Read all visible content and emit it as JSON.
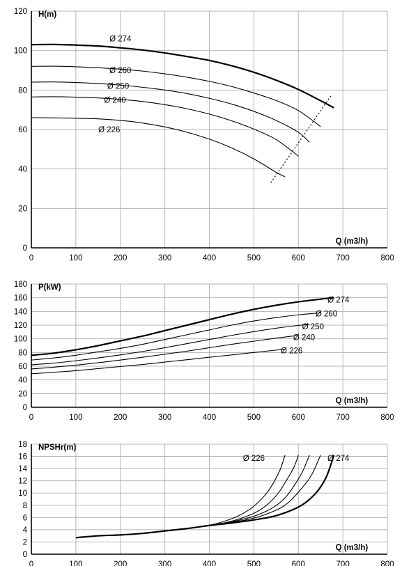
{
  "chart_data": [
    {
      "type": "line",
      "ylabel": "H(m)",
      "xlabel": "Q (m3/h)",
      "xlim": [
        0,
        800
      ],
      "ylim": [
        0,
        120
      ],
      "xticks": [
        0,
        100,
        200,
        300,
        400,
        500,
        600,
        700,
        800
      ],
      "yticks": [
        0,
        20,
        40,
        60,
        80,
        100,
        120
      ],
      "grid": true,
      "series": [
        {
          "name": "Ø 274",
          "bold": true,
          "x": [
            0,
            50,
            100,
            150,
            200,
            250,
            300,
            350,
            400,
            450,
            500,
            550,
            600,
            650,
            680
          ],
          "y": [
            103,
            103.1,
            102.8,
            102.3,
            101.4,
            100.3,
            98.8,
            97,
            95,
            92.3,
            89,
            85,
            80.3,
            74.6,
            71
          ],
          "label_at": [
            200,
            106
          ]
        },
        {
          "name": "Ø 260",
          "bold": false,
          "x": [
            0,
            50,
            100,
            150,
            200,
            250,
            300,
            350,
            400,
            450,
            500,
            550,
            600,
            650
          ],
          "y": [
            92,
            92.1,
            91.8,
            91.3,
            90.6,
            89.6,
            88.2,
            86.5,
            84.4,
            81.8,
            78.5,
            74.7,
            69.6,
            61.5
          ],
          "label_at": [
            200,
            90
          ]
        },
        {
          "name": "Ø 250",
          "bold": false,
          "x": [
            0,
            50,
            100,
            150,
            200,
            250,
            300,
            350,
            400,
            450,
            500,
            550,
            600,
            625
          ],
          "y": [
            84,
            84.1,
            83.8,
            83.3,
            82.5,
            81.4,
            80,
            78.2,
            75.8,
            72.9,
            69.2,
            64.6,
            58.6,
            53.5
          ],
          "label_at": [
            195,
            82
          ]
        },
        {
          "name": "Ø 240",
          "bold": false,
          "x": [
            0,
            50,
            100,
            150,
            200,
            250,
            300,
            350,
            400,
            450,
            500,
            550,
            600
          ],
          "y": [
            76.5,
            76.6,
            76.4,
            76,
            75.3,
            74.2,
            72.6,
            70.5,
            67.8,
            64.4,
            60.2,
            54.9,
            46.5
          ],
          "label_at": [
            188,
            75
          ]
        },
        {
          "name": "Ø 226",
          "bold": false,
          "x": [
            0,
            50,
            100,
            150,
            200,
            250,
            300,
            350,
            400,
            450,
            500,
            550,
            570
          ],
          "y": [
            66,
            65.9,
            65.7,
            65.4,
            64.6,
            63.3,
            61.3,
            58.6,
            55.1,
            50.7,
            45.1,
            38.3,
            36
          ],
          "label_at": [
            175,
            60
          ]
        }
      ],
      "efficiency_line": {
        "x": [
          538,
          673
        ],
        "y": [
          33,
          77
        ]
      }
    },
    {
      "type": "line",
      "ylabel": "P(kW)",
      "xlabel": "Q (m3/h)",
      "xlim": [
        0,
        800
      ],
      "ylim": [
        0,
        180
      ],
      "xticks": [
        0,
        100,
        200,
        300,
        400,
        500,
        600,
        700,
        800
      ],
      "yticks": [
        0,
        20,
        40,
        60,
        80,
        100,
        120,
        140,
        160,
        180
      ],
      "grid": true,
      "series": [
        {
          "name": "Ø 274",
          "bold": true,
          "x": [
            0,
            50,
            100,
            150,
            200,
            250,
            300,
            350,
            400,
            450,
            500,
            550,
            600,
            650,
            680
          ],
          "y": [
            76,
            79,
            84,
            90,
            97,
            104,
            112,
            120,
            128,
            136,
            143,
            149,
            154,
            158,
            160
          ],
          "label_at": [
            690,
            157
          ]
        },
        {
          "name": "Ø 260",
          "bold": false,
          "x": [
            0,
            50,
            100,
            150,
            200,
            250,
            300,
            350,
            400,
            450,
            500,
            550,
            600,
            650
          ],
          "y": [
            69,
            72,
            76,
            81,
            86,
            92,
            99,
            106,
            113,
            120,
            126,
            131,
            135,
            138
          ],
          "label_at": [
            663,
            137
          ]
        },
        {
          "name": "Ø 250",
          "bold": false,
          "x": [
            0,
            50,
            100,
            150,
            200,
            250,
            300,
            350,
            400,
            450,
            500,
            550,
            600,
            625
          ],
          "y": [
            62,
            64.5,
            68,
            72,
            76.5,
            81.5,
            87,
            93,
            99,
            105,
            110.5,
            115.5,
            119.5,
            121
          ],
          "label_at": [
            633,
            118
          ]
        },
        {
          "name": "Ø 240",
          "bold": false,
          "x": [
            0,
            50,
            100,
            150,
            200,
            250,
            300,
            350,
            400,
            450,
            500,
            550,
            600
          ],
          "y": [
            56,
            58.5,
            61.5,
            65,
            69,
            73,
            77.5,
            82,
            87,
            92,
            96.5,
            101,
            105
          ],
          "label_at": [
            613,
            102
          ]
        },
        {
          "name": "Ø 226",
          "bold": false,
          "x": [
            0,
            50,
            100,
            150,
            200,
            250,
            300,
            350,
            400,
            450,
            500,
            550,
            570
          ],
          "y": [
            49,
            51,
            53.5,
            56.5,
            59.5,
            62.5,
            66,
            69.5,
            73,
            76.5,
            80,
            83.5,
            85
          ],
          "label_at": [
            585,
            83
          ]
        }
      ]
    },
    {
      "type": "line",
      "ylabel": "NPSHr(m)",
      "xlabel": "Q (m3/h)",
      "xlim": [
        0,
        800
      ],
      "ylim": [
        0,
        18
      ],
      "xticks": [
        0,
        100,
        200,
        300,
        400,
        500,
        600,
        700,
        800
      ],
      "yticks": [
        0,
        2,
        4,
        6,
        8,
        10,
        12,
        14,
        16,
        18
      ],
      "grid": true,
      "series": [
        {
          "name": "Ø 274",
          "bold": true,
          "x": [
            100,
            150,
            200,
            250,
            300,
            350,
            400,
            450,
            500,
            550,
            600,
            630,
            650,
            665,
            680
          ],
          "y": [
            2.7,
            3,
            3.15,
            3.4,
            3.8,
            4.2,
            4.7,
            5.1,
            5.6,
            6.3,
            7.7,
            9.3,
            11,
            13,
            16.2
          ],
          "label_at": [
            690,
            15.7
          ]
        },
        {
          "name": "",
          "bold": false,
          "x": [
            400,
            450,
            500,
            550,
            580,
            610,
            630,
            650
          ],
          "y": [
            4.7,
            5.2,
            5.9,
            7.2,
            8.6,
            11,
            13,
            16.2
          ]
        },
        {
          "name": "",
          "bold": false,
          "x": [
            400,
            450,
            500,
            540,
            570,
            595,
            610,
            625
          ],
          "y": [
            4.7,
            5.3,
            6.2,
            7.5,
            9.2,
            11.7,
            13.6,
            16.2
          ]
        },
        {
          "name": "",
          "bold": false,
          "x": [
            400,
            450,
            500,
            530,
            555,
            575,
            590,
            600
          ],
          "y": [
            4.7,
            5.4,
            6.7,
            8.1,
            10,
            12.3,
            14.2,
            16.2
          ]
        },
        {
          "name": "Ø 226",
          "bold": false,
          "x": [
            400,
            430,
            460,
            490,
            510,
            530,
            545,
            560,
            570
          ],
          "y": [
            4.7,
            5.3,
            6.1,
            7.3,
            8.5,
            10.1,
            11.8,
            14,
            16.2
          ],
          "label_at": [
            500,
            15.7
          ]
        }
      ]
    }
  ]
}
